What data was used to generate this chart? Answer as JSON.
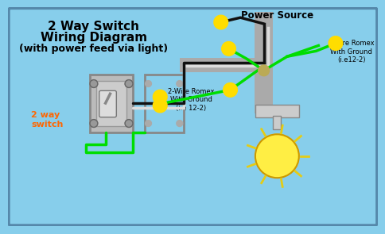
{
  "bg_color": "#87CEEB",
  "title_line1": "2 Way Switch",
  "title_line2": "Wiring Diagram",
  "title_line3": "(with power feed via light)",
  "label_power": "Power Source",
  "label_2way": "2 way\nswitch",
  "label_2way_color": "#FF6600",
  "label_romex1": "2-Wire Romex\nWith Ground\n(i.e 12-2)",
  "label_romex2": "2-wire Romex\nWith Ground\n(i.e12-2)",
  "wire_green": "#00DD00",
  "wire_black": "#111111",
  "wire_white": "#DDDDDD",
  "wire_gray_conduit": "#AAAAAA",
  "connector_yellow": "#FFDD00",
  "switch_face": "#BBBBBB",
  "switch_border": "#888888",
  "light_yellow": "#FFEE44",
  "light_socket": "#BBBBBB"
}
